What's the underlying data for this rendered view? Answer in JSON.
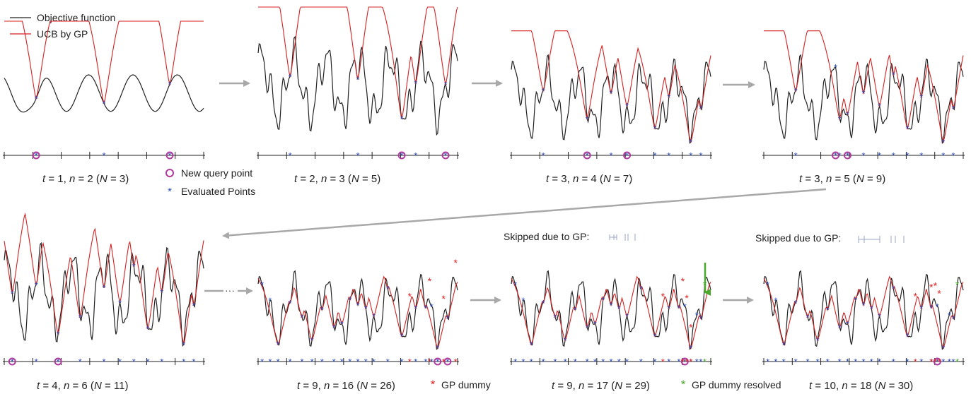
{
  "legend": {
    "objective": "Objective function",
    "ucb": "UCB by GP",
    "new_query": "New query point",
    "evaluated": "Evaluated Points",
    "gp_dummy": "GP dummy",
    "gp_dummy_resolved": "GP dummy resolved"
  },
  "colors": {
    "objective": "#222222",
    "ucb": "#d42020",
    "evaluated": "#2a4ab5",
    "new_query": "#b03aa0",
    "gp_dummy": "#e02020",
    "resolved": "#4aa82a",
    "arrow": "#a8a8a8"
  },
  "ellipsis": "···",
  "skipped_label": "Skipped due to GP:",
  "panels": [
    {
      "t": "1",
      "n": "2",
      "N": "3"
    },
    {
      "t": "2",
      "n": "3",
      "N": "5"
    },
    {
      "t": "3",
      "n": "4",
      "N": "7"
    },
    {
      "t": "3",
      "n": "5",
      "N": "9"
    },
    {
      "t": "4",
      "n": "6",
      "N": "11"
    },
    {
      "t": "9",
      "n": "16",
      "N": "26"
    },
    {
      "t": "9",
      "n": "17",
      "N": "29"
    },
    {
      "t": "10",
      "n": "18",
      "N": "30"
    }
  ]
}
